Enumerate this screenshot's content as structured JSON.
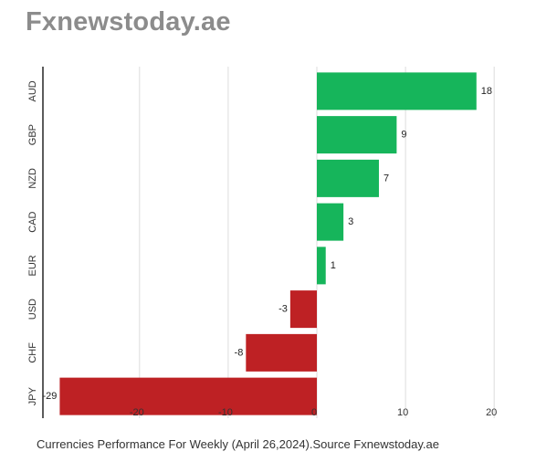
{
  "brand": "Fxnewstoday.ae",
  "caption": "Currencies Performance For Weekly (April 26,2024).Source Fxnewstoday.ae",
  "colors": {
    "positive": "#16b55b",
    "negative": "#be2124",
    "grid": "#dddddd",
    "axis": "#333333"
  },
  "chart_data": {
    "type": "bar",
    "orientation": "horizontal",
    "categories": [
      "AUD",
      "GBP",
      "NZD",
      "CAD",
      "EUR",
      "USD",
      "CHF",
      "JPY"
    ],
    "values": [
      18,
      9,
      7,
      3,
      1,
      -3,
      -8,
      -29
    ],
    "data_labels": [
      "18",
      "9",
      "7",
      "3",
      "1",
      "-3",
      "-8",
      "-29"
    ],
    "xlim": [
      -29,
      20
    ],
    "xticks": [
      -20,
      -10,
      0,
      10,
      20
    ],
    "xtick_labels": [
      "-20",
      "-10",
      "0",
      "10",
      "20"
    ],
    "grid": true,
    "title": "",
    "xlabel": "",
    "ylabel": ""
  }
}
